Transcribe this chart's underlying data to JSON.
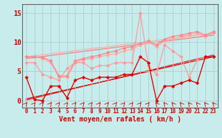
{
  "xlabel": "Vent moyen/en rafales ( km/h )",
  "xlim": [
    -0.5,
    23.5
  ],
  "ylim": [
    -1.2,
    16.5
  ],
  "yticks": [
    0,
    5,
    10,
    15
  ],
  "xticks": [
    0,
    1,
    2,
    3,
    4,
    5,
    6,
    7,
    8,
    9,
    10,
    11,
    12,
    13,
    14,
    15,
    16,
    17,
    18,
    19,
    20,
    21,
    22,
    23
  ],
  "bg_color": "#c8ecec",
  "grid_color": "#a8d0d0",
  "series": [
    {
      "name": "light_pink_zigzag",
      "color": "#ff9999",
      "lw": 0.9,
      "marker": "D",
      "ms": 2.5,
      "zorder": 3,
      "data_x": [
        0,
        1,
        2,
        3,
        4,
        5,
        6,
        7,
        8,
        9,
        10,
        11,
        12,
        13,
        14,
        15,
        16,
        17,
        18,
        19,
        20,
        21,
        22,
        23
      ],
      "data_y": [
        6.5,
        6.5,
        4.5,
        4.0,
        3.5,
        5.5,
        6.5,
        6.5,
        5.5,
        6.0,
        6.0,
        6.5,
        6.5,
        6.5,
        15.0,
        6.0,
        4.5,
        9.5,
        8.5,
        7.5,
        4.0,
        7.0,
        7.5,
        7.5
      ]
    },
    {
      "name": "pink_trend_upper",
      "color": "#ffaaaa",
      "lw": 1.0,
      "marker": "D",
      "ms": 2.5,
      "zorder": 2,
      "data_x": [
        0,
        1,
        2,
        3,
        4,
        5,
        6,
        7,
        8,
        9,
        10,
        11,
        12,
        13,
        14,
        15,
        16,
        17,
        18,
        19,
        20,
        21,
        22,
        23
      ],
      "data_y": [
        7.5,
        7.5,
        7.2,
        6.5,
        4.0,
        4.0,
        6.5,
        7.0,
        7.2,
        7.5,
        7.8,
        8.0,
        8.5,
        8.8,
        9.5,
        10.0,
        9.2,
        10.2,
        10.5,
        11.0,
        11.2,
        11.5,
        11.0,
        11.5
      ]
    },
    {
      "name": "pink_trend_upper2",
      "color": "#ff8888",
      "lw": 1.0,
      "marker": "D",
      "ms": 2.5,
      "zorder": 2,
      "data_x": [
        0,
        1,
        2,
        3,
        4,
        5,
        6,
        7,
        8,
        9,
        10,
        11,
        12,
        13,
        14,
        15,
        16,
        17,
        18,
        19,
        20,
        21,
        22,
        23
      ],
      "data_y": [
        7.5,
        7.5,
        7.4,
        6.8,
        4.2,
        4.2,
        6.8,
        7.2,
        7.5,
        7.8,
        8.2,
        8.5,
        9.0,
        9.2,
        9.8,
        10.2,
        9.5,
        10.5,
        11.0,
        11.2,
        11.5,
        11.8,
        11.2,
        11.8
      ]
    },
    {
      "name": "red_zigzag",
      "color": "#dd0000",
      "lw": 1.0,
      "marker": "D",
      "ms": 2.5,
      "zorder": 4,
      "data_x": [
        0,
        1,
        2,
        3,
        4,
        5,
        6,
        7,
        8,
        9,
        10,
        11,
        12,
        13,
        14,
        15,
        16,
        17,
        18,
        19,
        20,
        21,
        22,
        23
      ],
      "data_y": [
        4.0,
        0.2,
        0.0,
        2.5,
        2.5,
        0.5,
        3.5,
        4.0,
        3.5,
        4.0,
        4.0,
        4.0,
        4.5,
        4.5,
        7.5,
        6.5,
        0.0,
        2.5,
        2.5,
        3.0,
        3.5,
        3.0,
        7.5,
        7.5
      ]
    },
    {
      "name": "trend_line_pink1",
      "color": "#ffaaaa",
      "lw": 0.9,
      "marker": null,
      "zorder": 1,
      "data_x": [
        0,
        23
      ],
      "data_y": [
        7.5,
        11.5
      ]
    },
    {
      "name": "trend_line_pink2",
      "color": "#ff7777",
      "lw": 0.9,
      "marker": null,
      "zorder": 1,
      "data_x": [
        0,
        23
      ],
      "data_y": [
        7.2,
        11.2
      ]
    },
    {
      "name": "trend_line_red1",
      "color": "#cc0000",
      "lw": 0.9,
      "marker": null,
      "zorder": 1,
      "data_x": [
        0,
        23
      ],
      "data_y": [
        0.3,
        7.5
      ]
    },
    {
      "name": "trend_line_red2",
      "color": "#ee1111",
      "lw": 0.9,
      "marker": null,
      "zorder": 1,
      "data_x": [
        0,
        23
      ],
      "data_y": [
        0.1,
        7.8
      ]
    }
  ],
  "arrow_angles": [
    45,
    45,
    45,
    45,
    45,
    45,
    45,
    45,
    45,
    45,
    45,
    45,
    45,
    45,
    45,
    45,
    315,
    315,
    315,
    315,
    315,
    315,
    315,
    315
  ],
  "arrow_color": "#dd0000",
  "xlabel_color": "#cc0000",
  "ytick_color": "#cc0000",
  "xtick_color": "#cc0000",
  "tick_fontsize": 5.5,
  "label_fontsize": 7
}
